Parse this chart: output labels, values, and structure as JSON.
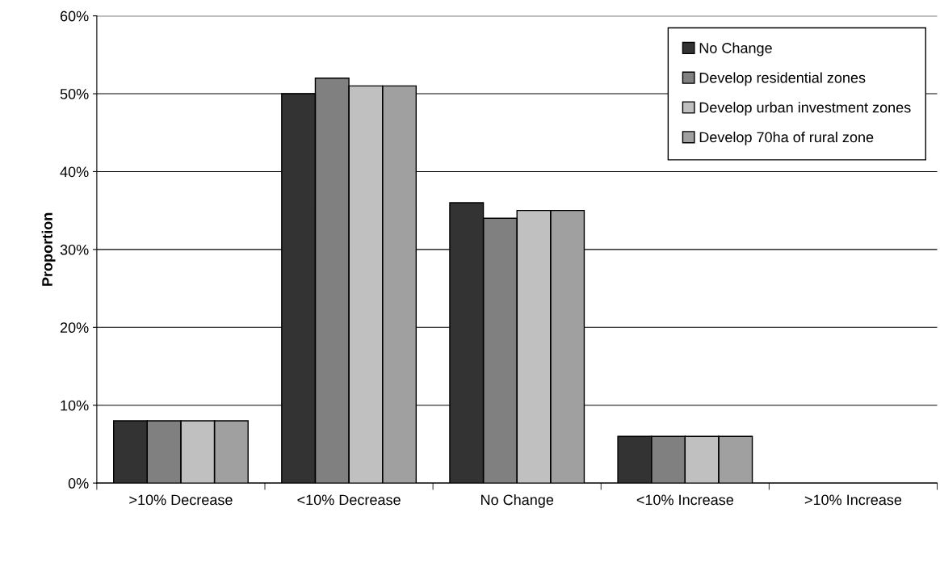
{
  "chart_data": {
    "type": "bar",
    "ylabel": "Proportion",
    "categories": [
      ">10% Decrease",
      "<10% Decrease",
      "No Change",
      "<10% Increase",
      ">10% Increase"
    ],
    "series": [
      {
        "name": "No Change",
        "color": "#333333",
        "values": [
          8,
          50,
          36,
          6,
          null
        ]
      },
      {
        "name": "Develop residential zones",
        "color": "#808080",
        "values": [
          8,
          52,
          34,
          6,
          null
        ]
      },
      {
        "name": "Develop urban investment zones",
        "color": "#c0c0c0",
        "values": [
          8,
          51,
          35,
          6,
          null
        ]
      },
      {
        "name": "Develop 70ha of rural zone",
        "color": "#a0a0a0",
        "values": [
          8,
          51,
          35,
          6,
          null
        ]
      }
    ],
    "ylim": [
      0,
      60
    ],
    "yticks": [
      {
        "value": 0,
        "label": "0%"
      },
      {
        "value": 10,
        "label": "10%"
      },
      {
        "value": 20,
        "label": "20%"
      },
      {
        "value": 30,
        "label": "30%"
      },
      {
        "value": 40,
        "label": "40%"
      },
      {
        "value": 50,
        "label": "50%"
      },
      {
        "value": 60,
        "label": "60%"
      }
    ],
    "grid": "y",
    "legend": "top right"
  }
}
